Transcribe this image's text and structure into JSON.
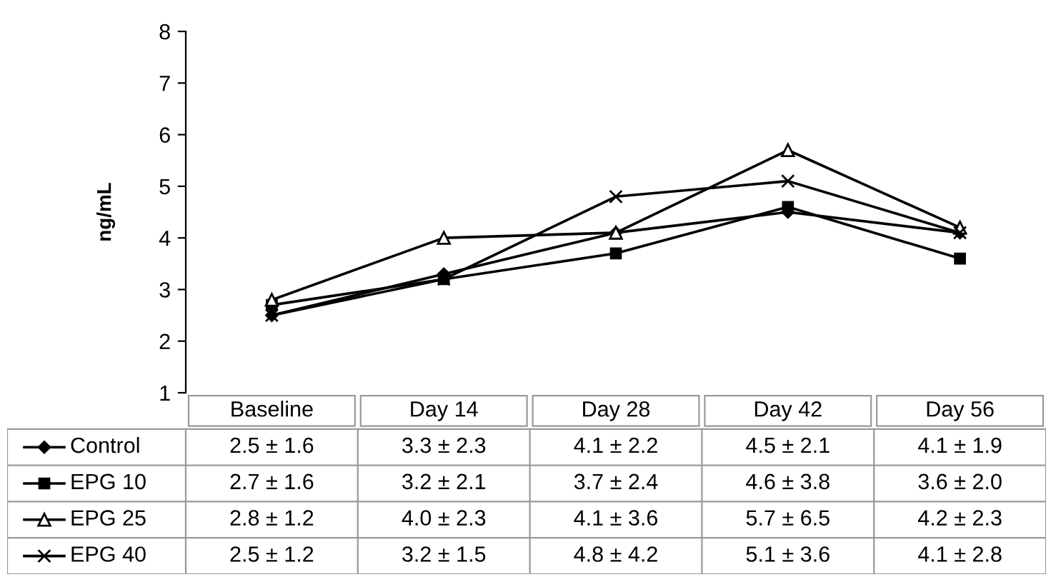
{
  "chart_data": {
    "type": "line",
    "ylabel": "ng/mL",
    "categories": [
      "Baseline",
      "Day 14",
      "Day 28",
      "Day 42",
      "Day 56"
    ],
    "ylim": [
      1,
      8
    ],
    "yticks": [
      1,
      2,
      3,
      4,
      5,
      6,
      7,
      8
    ],
    "grid": false,
    "legend": "bottom",
    "series": [
      {
        "name": "Control",
        "color": "#000000",
        "marker": "diamond",
        "values": [
          2.5,
          3.3,
          4.1,
          4.5,
          4.1
        ],
        "value_labels": [
          "2.5 ± 1.6",
          "3.3 ± 2.3",
          "4.1 ± 2.2",
          "4.5 ± 2.1",
          "4.1 ± 1.9"
        ]
      },
      {
        "name": "EPG 10",
        "color": "#000000",
        "marker": "square",
        "values": [
          2.7,
          3.2,
          3.7,
          4.6,
          3.6
        ],
        "value_labels": [
          "2.7 ± 1.6",
          "3.2 ± 2.1",
          "3.7 ± 2.4",
          "4.6 ± 3.8",
          "3.6 ± 2.0"
        ]
      },
      {
        "name": "EPG 25",
        "color": "#000000",
        "marker": "triangle",
        "values": [
          2.8,
          4.0,
          4.1,
          5.7,
          4.2
        ],
        "value_labels": [
          "2.8 ± 1.2",
          "4.0 ± 2.3",
          "4.1 ± 3.6",
          "5.7 ± 6.5",
          "4.2 ± 2.3"
        ]
      },
      {
        "name": "EPG 40",
        "color": "#000000",
        "marker": "cross",
        "values": [
          2.5,
          3.2,
          4.8,
          5.1,
          4.1
        ],
        "value_labels": [
          "2.5 ± 1.2",
          "3.2 ± 1.5",
          "4.8 ± 4.2",
          "5.1 ± 3.6",
          "4.1 ± 2.8"
        ]
      }
    ]
  }
}
